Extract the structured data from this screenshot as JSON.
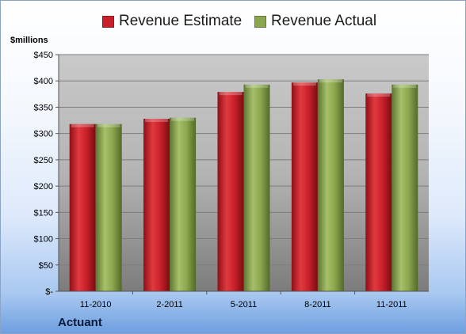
{
  "chart_data": {
    "type": "bar",
    "categories": [
      "11-2010",
      "2-2011",
      "5-2011",
      "8-2011",
      "11-2011"
    ],
    "series": [
      {
        "name": "Revenue Estimate",
        "values": [
          318,
          328,
          379,
          397,
          376
        ]
      },
      {
        "name": "Revenue Actual",
        "values": [
          318,
          330,
          393,
          403,
          393
        ]
      }
    ],
    "ylabel": "$millions",
    "ylim": [
      0,
      450
    ],
    "yticks": [
      0,
      50,
      100,
      150,
      200,
      250,
      300,
      350,
      400,
      450
    ],
    "ytick_labels": [
      "$-",
      "$50",
      "$100",
      "$150",
      "$200",
      "$250",
      "$300",
      "$350",
      "$400",
      "$450"
    ],
    "grid": true,
    "legend_position": "top",
    "colors": {
      "estimate": "#c8202a",
      "actual": "#8aa64e"
    },
    "company": "Actuant"
  }
}
